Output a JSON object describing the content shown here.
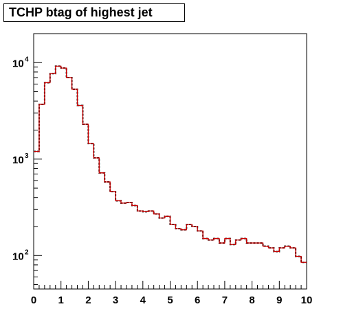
{
  "title": "TCHP btag of highest jet",
  "colors": {
    "series_dashed": "#000000",
    "series_solid": "#cc0000",
    "frame": "#000000",
    "background": "#ffffff"
  },
  "chart_data": {
    "type": "histogram",
    "title": "TCHP btag of highest jet",
    "xlabel": "",
    "ylabel": "",
    "xlim": [
      0,
      10
    ],
    "ylim": [
      45,
      20000
    ],
    "yscale": "log",
    "grid": false,
    "legend": "none",
    "bin_width": 0.2,
    "bin_edges_start": 0,
    "x_tick_labels": [
      "0",
      "1",
      "2",
      "3",
      "4",
      "5",
      "6",
      "7",
      "8",
      "9",
      "10"
    ],
    "y_tick_labels": [
      {
        "value": 100,
        "base": "10",
        "exp": "2"
      },
      {
        "value": 1000,
        "base": "10",
        "exp": "3"
      },
      {
        "value": 10000,
        "base": "10",
        "exp": "4"
      }
    ],
    "series": [
      {
        "style": "solid-red-over-dashed-black",
        "values": [
          1200,
          3700,
          6200,
          7700,
          9200,
          8800,
          7000,
          5300,
          3600,
          2300,
          1450,
          1030,
          720,
          580,
          460,
          370,
          350,
          355,
          330,
          290,
          285,
          290,
          270,
          245,
          255,
          210,
          190,
          185,
          210,
          200,
          180,
          150,
          145,
          150,
          135,
          150,
          130,
          145,
          150,
          135,
          135,
          135,
          125,
          120,
          110,
          120,
          125,
          120,
          98,
          85
        ]
      }
    ]
  }
}
